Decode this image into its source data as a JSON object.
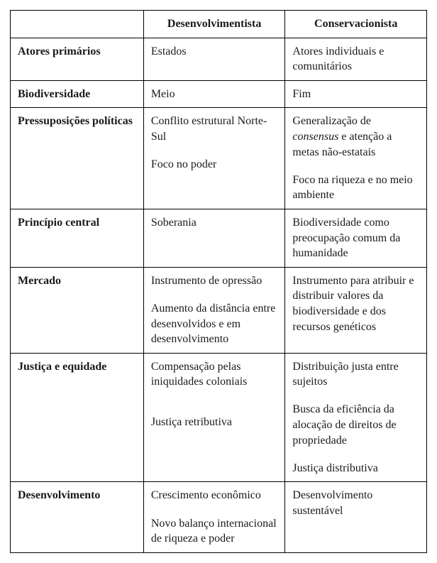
{
  "columns": [
    "",
    "Desenvolvimentista",
    "Conservacionista"
  ],
  "rows": [
    {
      "label": "Atores primários",
      "col1": [
        "Estados"
      ],
      "col2": [
        "Atores individuais e comunitários"
      ]
    },
    {
      "label": "Biodiversidade",
      "col1": [
        "Meio"
      ],
      "col2": [
        "Fim"
      ]
    },
    {
      "label": "Pressuposições políticas",
      "col1": [
        "Conflito estrutural Norte-Sul",
        "",
        "Foco no poder"
      ],
      "col2_html": [
        "Generalização de <em>consensus</em> e atenção a metas não-estatais",
        "",
        "Foco na riqueza e no meio ambiente"
      ]
    },
    {
      "label": "Princípio central",
      "col1": [
        "Soberania"
      ],
      "col2": [
        "Biodiversidade como preocupação comum da humanidade"
      ]
    },
    {
      "label": "Mercado",
      "col1": [
        "Instrumento de opressão",
        "",
        "Aumento da distância entre desenvolvidos e em desenvolvimento"
      ],
      "col2": [
        "Instrumento para atribuir e distribuir valores da biodiversidade e dos recursos genéticos"
      ]
    },
    {
      "label": "Justiça e equidade",
      "col1": [
        "Compensação pelas iniquidades coloniais",
        "",
        "",
        "Justiça retributiva"
      ],
      "col2": [
        "Distribuição justa entre sujeitos",
        "",
        "Busca da eficiência da alocação de direitos de propriedade",
        "",
        "Justiça distributiva"
      ]
    },
    {
      "label": "Desenvolvimento",
      "col1": [
        "Crescimento econômico",
        "",
        "Novo balanço internacional de riqueza e poder"
      ],
      "col2": [
        "Desenvolvimento sustentável"
      ]
    }
  ]
}
